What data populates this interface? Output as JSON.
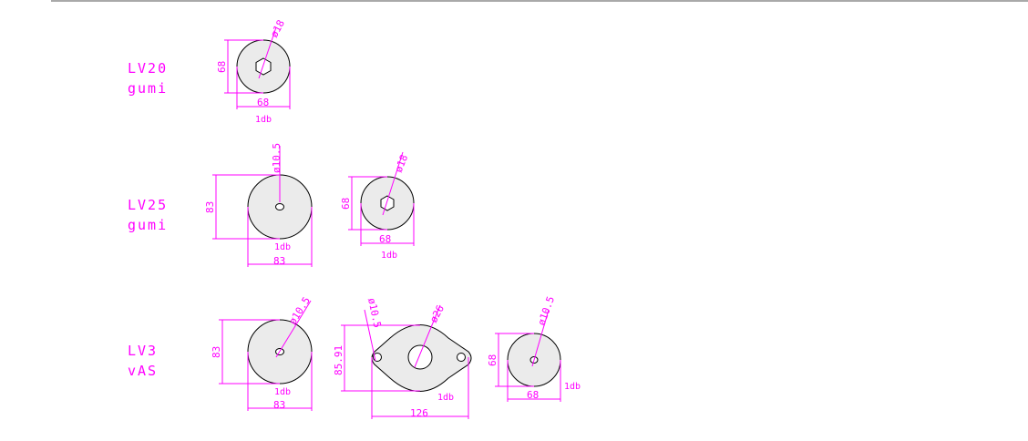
{
  "colors": {
    "annotation": "#ff00ff",
    "outline": "#000000",
    "fill": "#ebebeb",
    "rule": "#a9a9a9"
  },
  "rows": [
    {
      "name": "LV20",
      "material": "gumi"
    },
    {
      "name": "LV25",
      "material": "gumi"
    },
    {
      "name": "LV3",
      "material": "vAS"
    }
  ],
  "parts": {
    "lv20_a": {
      "diameter": "ø18",
      "height": "68",
      "width": "68",
      "qty": "1db"
    },
    "lv25_a": {
      "diameter": "ø10.5",
      "height": "83",
      "width": "83",
      "qty": "1db"
    },
    "lv25_b": {
      "diameter": "ø18",
      "height": "68",
      "width": "68",
      "qty": "1db"
    },
    "lv3_a": {
      "diameter": "ø10.5",
      "height": "83",
      "width": "83",
      "qty": "1db"
    },
    "lv3_b": {
      "side_hole": "ø10.5",
      "center_hole": "ø26",
      "height": "85.91",
      "width": "126",
      "qty": "1db"
    },
    "lv3_c": {
      "diameter": "ø10.5",
      "height": "68",
      "width": "68",
      "qty": "1db"
    }
  }
}
